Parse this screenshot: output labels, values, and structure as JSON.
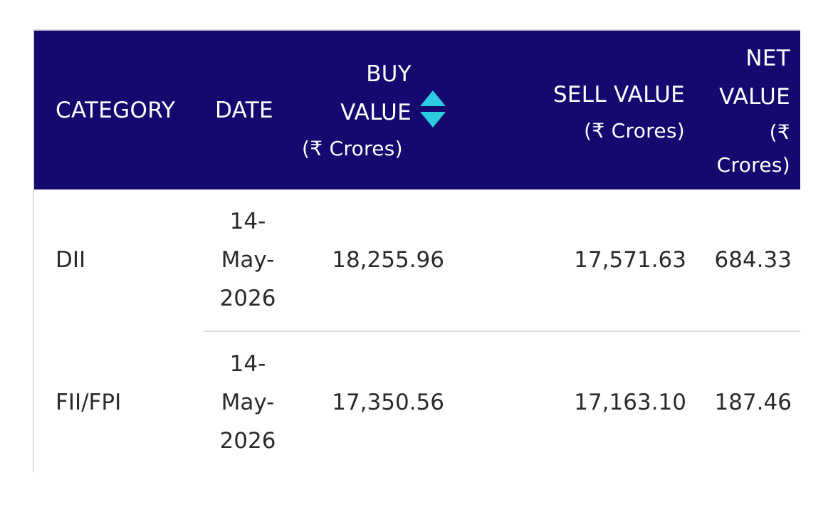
{
  "header": {
    "category": "CATEGORY",
    "date": "DATE",
    "buy_label_line1": "BUY",
    "buy_label_line2": "VALUE",
    "buy_unit": "(₹ Crores)",
    "sell_label": "SELL VALUE",
    "sell_unit": "(₹ Crores)",
    "net_label_line1": "NET",
    "net_label_line2": "VALUE",
    "net_unit_line1": "(₹",
    "net_unit_line2": "Crores)",
    "sort_icon": "sort-up-down-icon"
  },
  "rows": [
    {
      "category": "DII",
      "date_line1": "14-",
      "date_line2": "May-",
      "date_line3": "2026",
      "buy_value": "18,255.96",
      "sell_value": "17,571.63",
      "net_value": "684.33"
    },
    {
      "category": "FII/FPI",
      "date_line1": "14-",
      "date_line2": "May-",
      "date_line3": "2026",
      "buy_value": "17,350.56",
      "sell_value": "17,163.10",
      "net_value": "187.46"
    }
  ],
  "colors": {
    "header_bg": "#13096f",
    "header_text": "#ffffff",
    "sort_icon": "#2ccbe0",
    "border": "#dcdcdc",
    "body_text": "#2b2b2b"
  }
}
